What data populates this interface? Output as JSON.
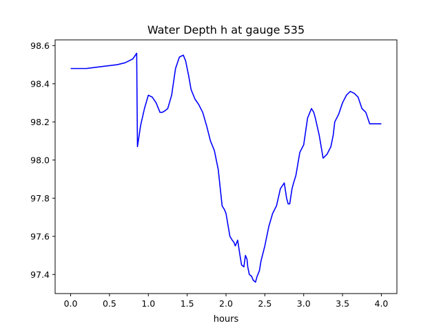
{
  "chart_data": {
    "type": "line",
    "title": "Water Depth h at gauge 535",
    "xlabel": "hours",
    "ylabel": "",
    "xlim": [
      -0.2,
      4.2
    ],
    "ylim": [
      97.3,
      98.63
    ],
    "xticks": [
      0.0,
      0.5,
      1.0,
      1.5,
      2.0,
      2.5,
      3.0,
      3.5,
      4.0
    ],
    "xtick_labels": [
      "0.0",
      "0.5",
      "1.0",
      "1.5",
      "2.0",
      "2.5",
      "3.0",
      "3.5",
      "4.0"
    ],
    "yticks": [
      97.4,
      97.6,
      97.8,
      98.0,
      98.2,
      98.4,
      98.6
    ],
    "ytick_labels": [
      "97.4",
      "97.6",
      "97.8",
      "98.0",
      "98.2",
      "98.4",
      "98.6"
    ],
    "grid": false,
    "line_color": "#0000ff",
    "series": [
      {
        "x": [
          0.0,
          0.2,
          0.4,
          0.6,
          0.7,
          0.8,
          0.85,
          0.855,
          0.86,
          0.9,
          0.95,
          1.0,
          1.05,
          1.1,
          1.15,
          1.18,
          1.22,
          1.25,
          1.3,
          1.35,
          1.4,
          1.45,
          1.48,
          1.52,
          1.55,
          1.6,
          1.65,
          1.7,
          1.75,
          1.8,
          1.85,
          1.9,
          1.95,
          1.98,
          2.0,
          2.05,
          2.08,
          2.1,
          2.12,
          2.15,
          2.18,
          2.2,
          2.23,
          2.25,
          2.27,
          2.28,
          2.3,
          2.33,
          2.35,
          2.38,
          2.4,
          2.43,
          2.45,
          2.5,
          2.55,
          2.6,
          2.65,
          2.7,
          2.75,
          2.78,
          2.8,
          2.82,
          2.85,
          2.87,
          2.9,
          2.95,
          3.0,
          3.05,
          3.08,
          3.1,
          3.13,
          3.15,
          3.2,
          3.25,
          3.3,
          3.35,
          3.38,
          3.4,
          3.45,
          3.5,
          3.55,
          3.6,
          3.65,
          3.7,
          3.75,
          3.8,
          3.85,
          3.9,
          3.95,
          4.0
        ],
        "y": [
          98.48,
          98.48,
          98.49,
          98.5,
          98.51,
          98.53,
          98.56,
          98.3,
          98.07,
          98.18,
          98.27,
          98.34,
          98.33,
          98.3,
          98.25,
          98.25,
          98.26,
          98.27,
          98.34,
          98.48,
          98.54,
          98.55,
          98.52,
          98.44,
          98.37,
          98.32,
          98.29,
          98.25,
          98.18,
          98.1,
          98.05,
          97.95,
          97.76,
          97.74,
          97.72,
          97.6,
          97.58,
          97.57,
          97.55,
          97.58,
          97.5,
          97.45,
          97.44,
          97.5,
          97.48,
          97.44,
          97.4,
          97.39,
          97.37,
          97.36,
          97.39,
          97.42,
          97.47,
          97.55,
          97.65,
          97.72,
          97.76,
          97.85,
          97.88,
          97.8,
          97.77,
          97.77,
          97.85,
          97.88,
          97.92,
          98.04,
          98.08,
          98.22,
          98.25,
          98.27,
          98.25,
          98.22,
          98.13,
          98.01,
          98.03,
          98.07,
          98.13,
          98.2,
          98.24,
          98.3,
          98.34,
          98.36,
          98.35,
          98.33,
          98.27,
          98.25,
          98.19,
          98.19,
          98.19,
          98.19
        ]
      }
    ]
  }
}
